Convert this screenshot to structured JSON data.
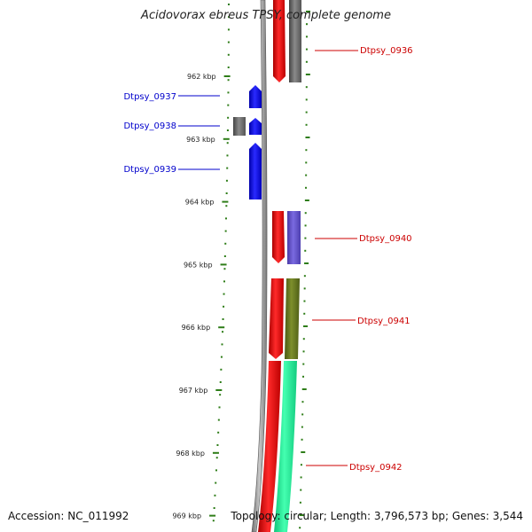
{
  "title": "Acidovorax ebreus TPSY, complete genome",
  "footer": {
    "accession": "Accession: NC_011992",
    "summary": "Topology: circular; Length: 3,796,573 bp; Genes: 3,544"
  },
  "ticks": [
    {
      "label": "962 kbp",
      "kbp": 962
    },
    {
      "label": "963 kbp",
      "kbp": 963
    },
    {
      "label": "964 kbp",
      "kbp": 964
    },
    {
      "label": "965 kbp",
      "kbp": 965
    },
    {
      "label": "966 kbp",
      "kbp": 966
    },
    {
      "label": "967 kbp",
      "kbp": 967
    },
    {
      "label": "968 kbp",
      "kbp": 968
    },
    {
      "label": "969 kbp",
      "kbp": 969
    }
  ],
  "genes_left": [
    {
      "name": "Dtpsy_0937",
      "color": "#0000cc"
    },
    {
      "name": "Dtpsy_0938",
      "color": "#0000cc"
    },
    {
      "name": "Dtpsy_0939",
      "color": "#0000cc"
    }
  ],
  "genes_right": [
    {
      "name": "Dtpsy_0936",
      "color": "#cc0000"
    },
    {
      "name": "Dtpsy_0940",
      "color": "#cc0000"
    },
    {
      "name": "Dtpsy_0941",
      "color": "#cc0000"
    },
    {
      "name": "Dtpsy_0942",
      "color": "#cc0000"
    }
  ],
  "colors": {
    "tick": "#2e7d18",
    "backbone": "#8a8a8a",
    "cds": "#ff0000",
    "blue_gene": "#0000ff",
    "gray_gene": "#666666",
    "cog_purple": "#6655cc",
    "cog_olive": "#6b7a22",
    "cog_teal": "#22ee99"
  }
}
